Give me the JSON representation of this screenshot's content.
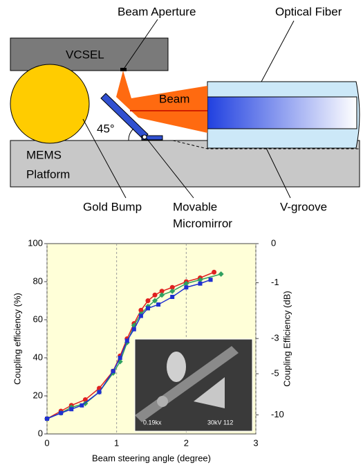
{
  "diagram": {
    "labels": {
      "beam_aperture": "Beam Aperture",
      "optical_fiber": "Optical Fiber",
      "vcsel": "VCSEL",
      "beam": "Beam",
      "angle": "45°",
      "mems": "MEMS",
      "platform": "Platform",
      "gold_bump": "Gold Bump",
      "movable": "Movable",
      "micromirror": "Micromirror",
      "v_groove": "V-groove"
    }
  },
  "inset_labels": [
    "0.19kx",
    "30kV 112"
  ],
  "chart_data": {
    "type": "scatter-line",
    "xlabel": "Beam steering angle (degree)",
    "ylabel": "Coupling efficiency (%)",
    "y2label": "Coupling Efficiency (dB)",
    "y2_scale": "decibel",
    "xlim": [
      0,
      3
    ],
    "xticks": [
      0,
      1,
      2,
      3
    ],
    "ylim": [
      0,
      100
    ],
    "yticks": [
      0,
      20,
      40,
      60,
      80,
      100
    ],
    "y2ticks": [
      0,
      -1,
      -3,
      -5,
      -10
    ],
    "grid": true,
    "background": "#ffffd8",
    "series": [
      {
        "marker": "circle",
        "color": "#e02020",
        "x": [
          0,
          0.2,
          0.35,
          0.55,
          0.75,
          0.95,
          1.05,
          1.15,
          1.25,
          1.35,
          1.45,
          1.55,
          1.65,
          1.8,
          2.0,
          2.2,
          2.4
        ],
        "values": [
          8,
          12,
          15,
          18,
          24,
          33,
          41,
          50,
          58,
          65,
          70,
          73,
          75,
          77,
          80,
          82,
          85
        ]
      },
      {
        "marker": "diamond",
        "color": "#30a060",
        "x": [
          0,
          0.2,
          0.35,
          0.55,
          0.75,
          0.95,
          1.05,
          1.15,
          1.25,
          1.35,
          1.45,
          1.55,
          1.65,
          1.8,
          2.0,
          2.2,
          2.5
        ],
        "values": [
          8,
          11,
          14,
          16,
          22,
          32,
          38,
          48,
          57,
          63,
          67,
          70,
          73,
          75,
          79,
          81,
          84
        ]
      },
      {
        "marker": "square",
        "color": "#2030d0",
        "x": [
          0,
          0.2,
          0.35,
          0.5,
          0.75,
          0.95,
          1.05,
          1.15,
          1.25,
          1.35,
          1.45,
          1.6,
          1.8,
          2.0,
          2.2,
          2.35
        ],
        "values": [
          8,
          11,
          13,
          15,
          22,
          33,
          40,
          49,
          55,
          62,
          66,
          68,
          72,
          77,
          79,
          81
        ]
      }
    ]
  }
}
